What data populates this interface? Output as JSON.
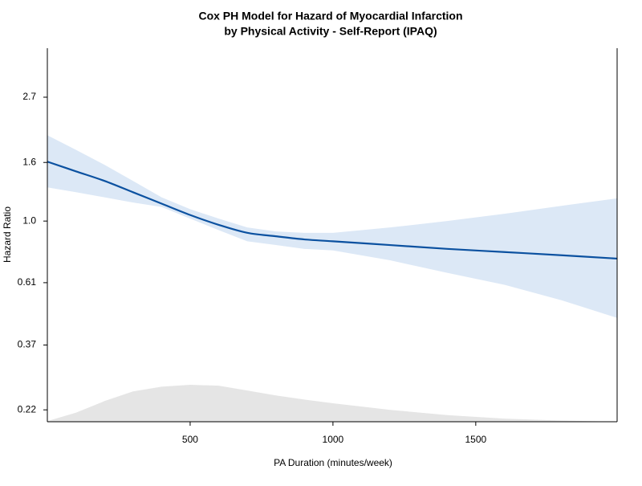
{
  "chart_data": {
    "type": "line",
    "title": [
      "Cox PH Model for Hazard of Myocardial Infarction",
      "by Physical Activity - Self-Report (IPAQ)"
    ],
    "xlabel": "PA Duration (minutes/week)",
    "ylabel": "Hazard Ratio",
    "x": [
      0,
      100,
      200,
      300,
      400,
      500,
      600,
      700,
      800,
      900,
      1000,
      1200,
      1400,
      1600,
      1800,
      1995
    ],
    "series": [
      {
        "color": "#0b51a0",
        "band_color": "#dce8f6",
        "values": [
          1.61,
          1.49,
          1.38,
          1.26,
          1.15,
          1.05,
          0.97,
          0.91,
          0.885,
          0.863,
          0.85,
          0.825,
          0.8,
          0.78,
          0.76,
          0.74
        ],
        "lower": [
          1.31,
          1.26,
          1.21,
          1.16,
          1.12,
          1.02,
          0.93,
          0.85,
          0.825,
          0.8,
          0.79,
          0.73,
          0.66,
          0.6,
          0.53,
          0.46
        ],
        "upper": [
          1.99,
          1.77,
          1.57,
          1.38,
          1.21,
          1.1,
          1.02,
          0.95,
          0.92,
          0.91,
          0.91,
          0.95,
          1.0,
          1.06,
          1.13,
          1.2
        ]
      }
    ],
    "density": {
      "color": "#e5e5e5",
      "values": [
        0.201,
        0.215,
        0.236,
        0.255,
        0.265,
        0.269,
        0.267,
        0.257,
        0.247,
        0.239,
        0.232,
        0.22,
        0.211,
        0.205,
        0.202,
        0.2
      ]
    },
    "xlim": [
      0,
      1995
    ],
    "ylim": [
      0.2,
      4.0
    ],
    "ylog": true,
    "xticks": [
      500,
      1000,
      1500
    ],
    "yticks": [
      0.22,
      0.37,
      0.61,
      {
        "value": 1,
        "label": "1.0"
      },
      1.6,
      2.7
    ]
  }
}
